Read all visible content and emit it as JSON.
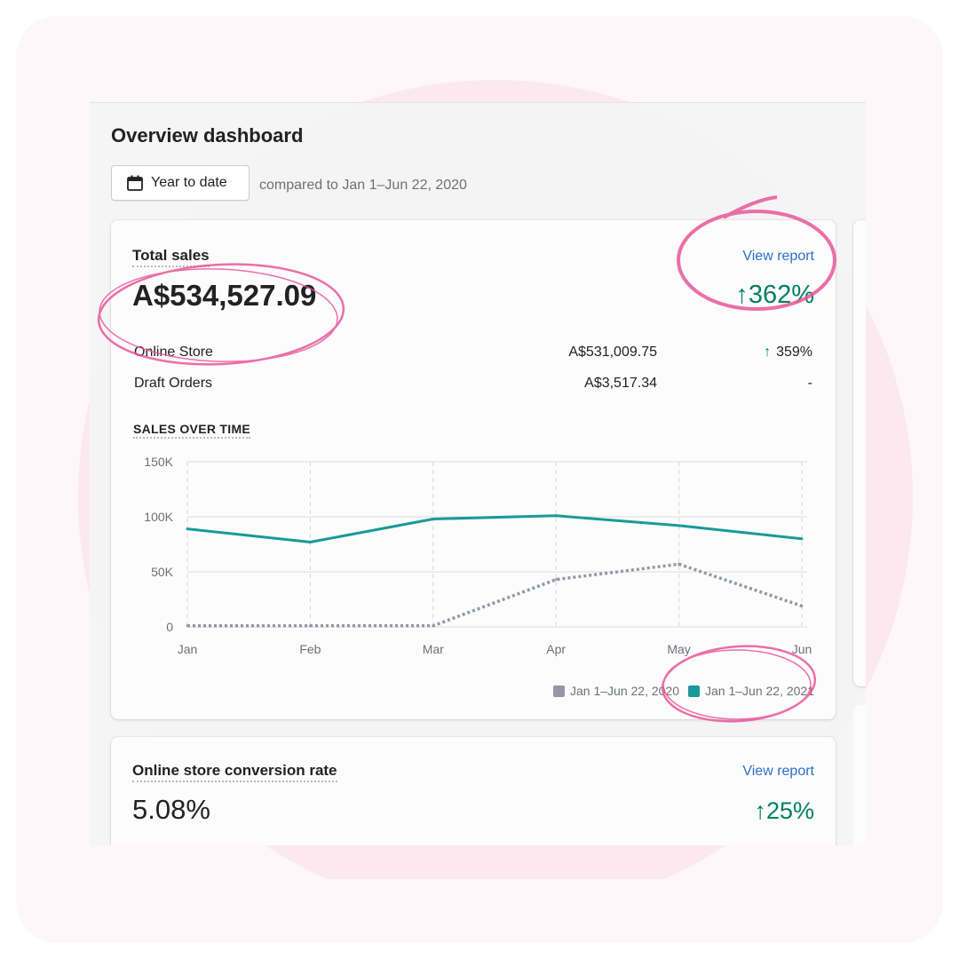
{
  "page": {
    "title": "Overview dashboard"
  },
  "filters": {
    "date_range_label": "Year to date",
    "compare_text": "compared to Jan 1–Jun 22, 2020"
  },
  "total_sales": {
    "title": "Total sales",
    "view_report": "View report",
    "value": "A$534,527.09",
    "change": "↑362%",
    "rows": [
      {
        "label": "Online Store",
        "value": "A$531,009.75",
        "change": "359%",
        "arrow": "↑"
      },
      {
        "label": "Draft Orders",
        "value": "A$3,517.34",
        "change": "-",
        "arrow": ""
      }
    ],
    "chart_title": "SALES OVER TIME",
    "legend": [
      "Jan 1–Jun 22, 2020",
      "Jan 1–Jun 22, 2021"
    ]
  },
  "conversion": {
    "title": "Online store conversion rate",
    "view_report": "View report",
    "value": "5.08%",
    "change": "↑25%"
  },
  "colors": {
    "accent_teal": "#1a9a9a",
    "previous_gray": "#9298a8",
    "positive_green": "#008060",
    "link_blue": "#2c6ecb",
    "highlight_pink": "#e8559a"
  },
  "chart_data": {
    "type": "line",
    "title": "SALES OVER TIME",
    "categories": [
      "Jan",
      "Feb",
      "Mar",
      "Apr",
      "May",
      "Jun"
    ],
    "y_ticks": [
      "0",
      "50K",
      "100K",
      "150K"
    ],
    "ylim": [
      0,
      150000
    ],
    "grid": true,
    "legend_position": "bottom-right",
    "series": [
      {
        "name": "Jan 1–Jun 22, 2020",
        "style": "dotted",
        "color": "#9298a8",
        "values": [
          1000,
          1000,
          1000,
          43000,
          57000,
          19000
        ]
      },
      {
        "name": "Jan 1–Jun 22, 2021",
        "style": "solid",
        "color": "#1a9a9a",
        "values": [
          89000,
          77000,
          98000,
          101000,
          92000,
          80000
        ]
      }
    ]
  }
}
